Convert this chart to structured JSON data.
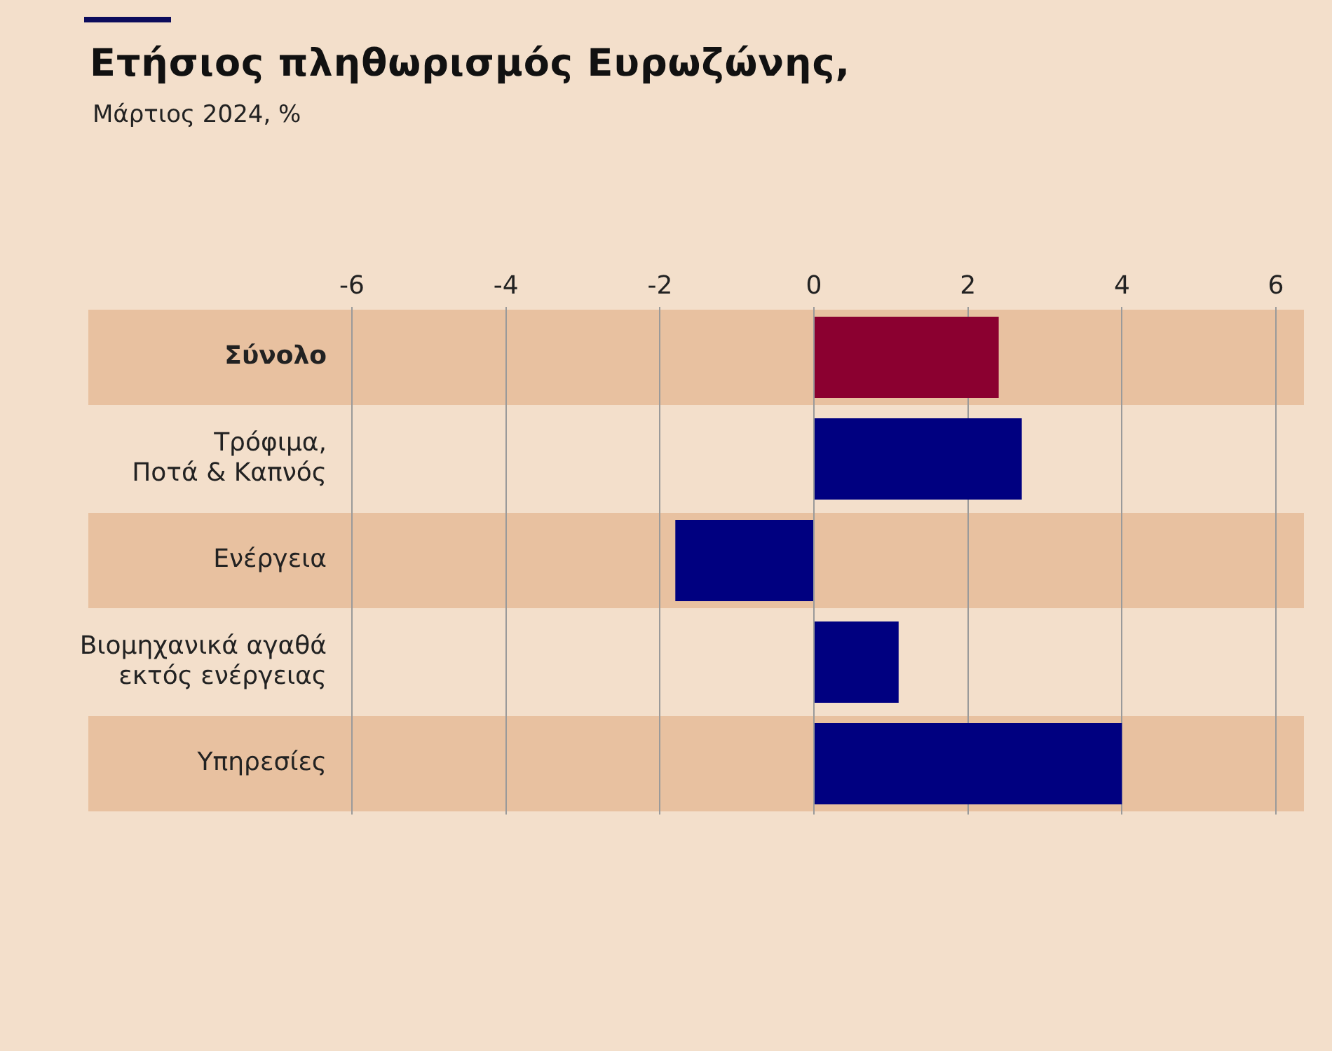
{
  "chart_data": {
    "type": "bar",
    "orientation": "horizontal",
    "title": "Ετήσιος πληθωρισμός Ευρωζώνης,",
    "subtitle": "Μάρτιος 2024, %",
    "categories": [
      "Σύνολο",
      "Τρόφιμα, Ποτά & Καπνός",
      "Ενέργεια",
      "Βιομηχανικά αγαθά εκτός ενέργειας",
      "Υπηρεσίες"
    ],
    "values": [
      2.4,
      2.7,
      -1.8,
      1.1,
      4.0
    ],
    "colors": [
      "#8b0030",
      "#000080",
      "#000080",
      "#000080",
      "#000080"
    ],
    "xlim": [
      -6,
      6
    ],
    "xticks": [
      -6,
      -4,
      -2,
      0,
      2,
      4,
      6
    ],
    "grid": "x",
    "legend": false
  }
}
